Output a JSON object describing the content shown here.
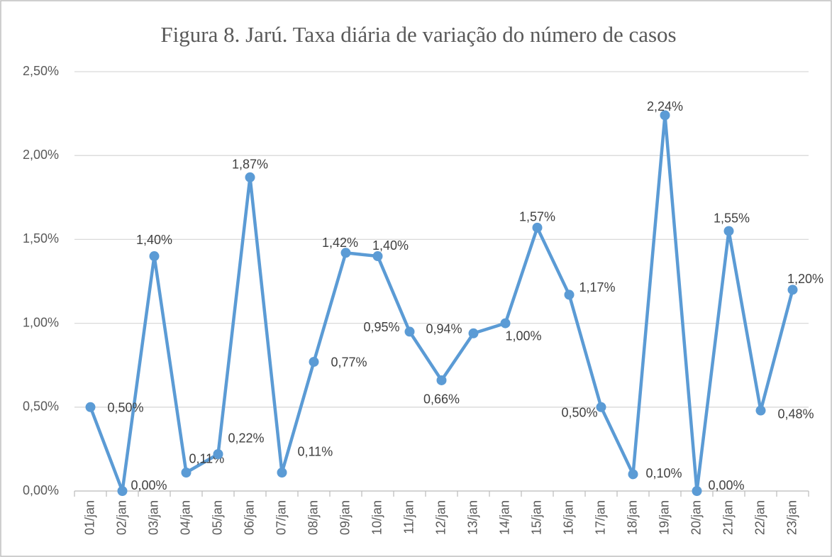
{
  "chart_data": {
    "type": "line",
    "title": "Figura 8. Jarú. Taxa diária de variação do número de casos",
    "categories": [
      "01/jan",
      "02/jan",
      "03/jan",
      "04/jan",
      "05/jan",
      "06/jan",
      "07/jan",
      "08/jan",
      "09/jan",
      "10/jan",
      "11/jan",
      "12/jan",
      "13/jan",
      "14/jan",
      "15/jan",
      "16/jan",
      "17/jan",
      "18/jan",
      "19/jan",
      "20/jan",
      "21/jan",
      "22/jan",
      "23/jan"
    ],
    "series": [
      {
        "name": "Taxa diária",
        "color": "#5b9bd5",
        "values": [
          0.5,
          0.0,
          1.4,
          0.11,
          0.22,
          1.87,
          0.11,
          0.77,
          1.42,
          1.4,
          0.95,
          0.66,
          0.94,
          1.0,
          1.57,
          1.17,
          0.5,
          0.1,
          2.24,
          0.0,
          1.55,
          0.48,
          1.2
        ],
        "value_labels": [
          "0,50%",
          "0,00%",
          "1,40%",
          "0,11%",
          "0,22%",
          "1,87%",
          "0,11%",
          "0,77%",
          "1,42%",
          "1,40%",
          "0,95%",
          "0,66%",
          "0,94%",
          "1,00%",
          "1,57%",
          "1,17%",
          "0,50%",
          "0,10%",
          "2,24%",
          "0,00%",
          "1,55%",
          "0,48%",
          "1,20%"
        ]
      }
    ],
    "ylim": [
      0,
      2.5
    ],
    "yticks": [
      {
        "value": 0,
        "label": "0,00%"
      },
      {
        "value": 0.5,
        "label": "0,50%"
      },
      {
        "value": 1,
        "label": "1,00%"
      },
      {
        "value": 1.5,
        "label": "1,50%"
      },
      {
        "value": 2,
        "label": "2,00%"
      },
      {
        "value": 2.5,
        "label": "2,50%"
      }
    ],
    "grid": true
  }
}
